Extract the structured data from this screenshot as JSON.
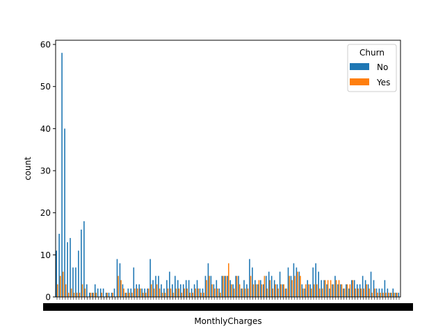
{
  "chart_data": {
    "type": "bar",
    "xlabel": "MonthlyCharges",
    "ylabel": "count",
    "ylim": [
      0,
      61
    ],
    "yticks": [
      0,
      10,
      20,
      30,
      40,
      50,
      60
    ],
    "legend": {
      "title": "Churn",
      "placement": "top-right",
      "entries": [
        "No",
        "Yes"
      ]
    },
    "series": [
      {
        "name": "No",
        "color": "#1f77b4",
        "values": [
          11,
          15,
          58,
          40,
          13,
          14,
          7,
          7,
          11,
          16,
          18,
          3,
          1,
          1,
          3,
          2,
          2,
          2,
          1,
          1,
          1,
          2,
          9,
          8,
          3,
          1,
          2,
          2,
          7,
          3,
          3,
          2,
          2,
          2,
          9,
          4,
          5,
          5,
          3,
          2,
          4,
          6,
          3,
          5,
          4,
          3,
          3,
          4,
          4,
          2,
          3,
          4,
          2,
          2,
          5,
          8,
          5,
          3,
          4,
          2,
          5,
          5,
          5,
          4,
          3,
          5,
          5,
          2,
          4,
          3,
          9,
          7,
          4,
          3,
          4,
          3,
          5,
          6,
          5,
          4,
          3,
          6,
          3,
          2,
          7,
          5,
          8,
          7,
          6,
          3,
          2,
          4,
          3,
          7,
          8,
          6,
          4,
          4,
          3,
          2,
          3,
          5,
          3,
          3,
          2,
          3,
          2,
          4,
          4,
          3,
          3,
          5,
          4,
          3,
          6,
          4,
          2,
          2,
          2,
          4,
          2,
          1,
          2,
          1,
          1
        ]
      },
      {
        "name": "Yes",
        "color": "#ff7f0e",
        "values": [
          3,
          5,
          6,
          3,
          1,
          2,
          1,
          1,
          1,
          3,
          2,
          0,
          1,
          1,
          1,
          0,
          1,
          0,
          1,
          0,
          1,
          0,
          5,
          4,
          2,
          1,
          1,
          1,
          2,
          2,
          2,
          1,
          1,
          2,
          3,
          2,
          3,
          2,
          1,
          1,
          2,
          2,
          1,
          2,
          2,
          1,
          2,
          2,
          1,
          1,
          2,
          2,
          1,
          1,
          4,
          5,
          3,
          2,
          2,
          1,
          5,
          5,
          8,
          3,
          2,
          5,
          3,
          2,
          2,
          2,
          5,
          3,
          3,
          4,
          3,
          5,
          2,
          4,
          2,
          3,
          2,
          3,
          3,
          2,
          5,
          4,
          5,
          6,
          5,
          2,
          3,
          3,
          2,
          3,
          3,
          2,
          2,
          4,
          4,
          4,
          3,
          4,
          4,
          3,
          2,
          3,
          3,
          4,
          2,
          2,
          2,
          2,
          3,
          2,
          1,
          2,
          1,
          1,
          1,
          1,
          1,
          1,
          1,
          1,
          0
        ]
      }
    ]
  }
}
